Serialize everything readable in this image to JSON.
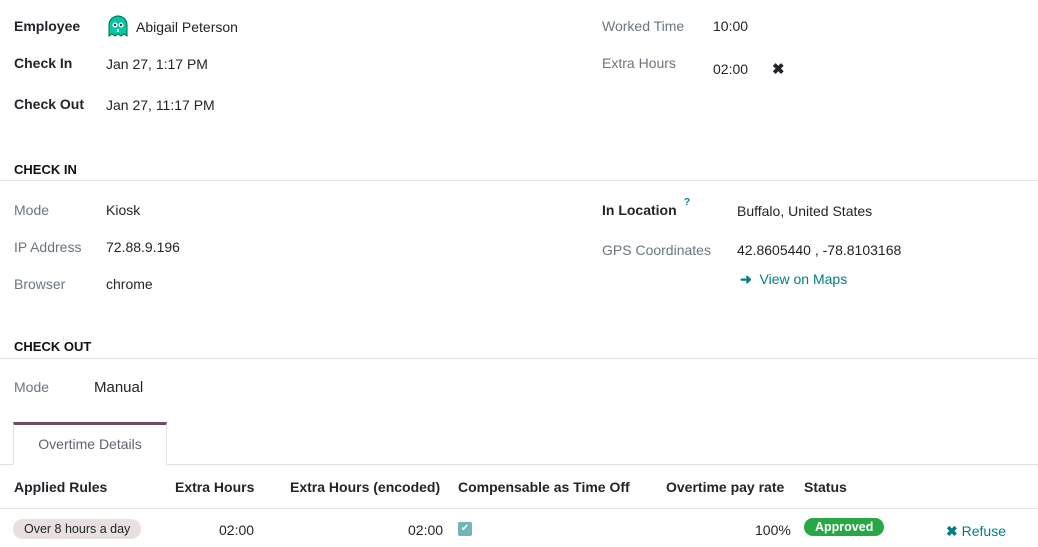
{
  "employee": {
    "label": "Employee",
    "name": "Abigail Peterson",
    "avatar_icon": "ghost-avatar-icon"
  },
  "check_in": {
    "label": "Check In",
    "value": "Jan 27, 1:17 PM"
  },
  "check_out": {
    "label": "Check Out",
    "value": "Jan 27, 11:17 PM"
  },
  "worked_time": {
    "label": "Worked Time",
    "value": "10:00"
  },
  "extra_hours": {
    "label": "Extra Hours",
    "value": "02:00",
    "clear_icon": "close-icon"
  },
  "check_in_section": {
    "title": "CHECK IN",
    "mode_label": "Mode",
    "mode": "Kiosk",
    "ip_label": "IP Address",
    "ip": "72.88.9.196",
    "browser_label": "Browser",
    "browser": "chrome",
    "location_label": "In Location",
    "help": "?",
    "location": "Buffalo, United States",
    "gps_label": "GPS Coordinates",
    "gps": "42.8605440 , -78.8103168",
    "maps_link": "View on Maps"
  },
  "check_out_section": {
    "title": "CHECK OUT",
    "mode_label": "Mode",
    "mode": "Manual"
  },
  "tabs": [
    {
      "label": "Overtime Details",
      "active": true
    }
  ],
  "table": {
    "headers": [
      "Applied Rules",
      "Extra Hours",
      "Extra Hours (encoded)",
      "Compensable as Time Off",
      "Overtime pay rate",
      "Status"
    ],
    "rows": [
      {
        "rule": "Over 8 hours a day",
        "extra": "02:00",
        "encoded": "02:00",
        "compensable": true,
        "rate": "100%",
        "status": "Approved",
        "action": "Refuse"
      }
    ]
  },
  "colors": {
    "accent": "#017e84",
    "tab_border": "#714b67",
    "approved": "#28a745"
  }
}
